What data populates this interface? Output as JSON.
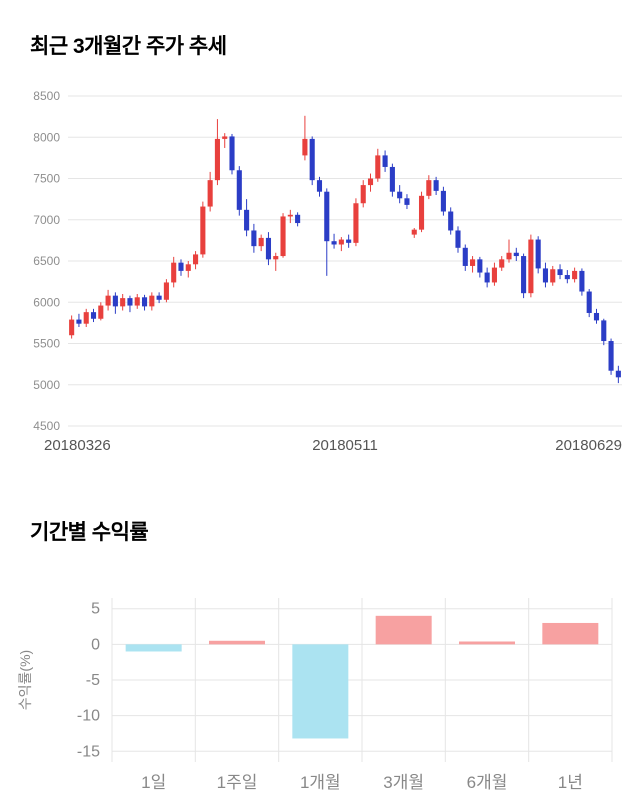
{
  "price_section": {
    "title": "최근 3개월간 주가 추세"
  },
  "returns_section": {
    "title": "기간별 수익률"
  },
  "chart_data": [
    {
      "type": "candlestick",
      "title": "최근 3개월간 주가 추세",
      "x_tick_labels": [
        "20180326",
        "20180511",
        "20180629"
      ],
      "y_ticks": [
        8500,
        8000,
        7500,
        7000,
        6500,
        6000,
        5500,
        5000,
        4500
      ],
      "ylim": [
        4500,
        8500
      ],
      "up_color": "#e8403d",
      "down_color": "#2b3dc6",
      "grid_color": "#e5e5e5",
      "tick_label_color": "#8e8e8e",
      "date_label_color": "#555555",
      "legend": "none",
      "grid": true,
      "candles_ohlc": [
        [
          5600,
          5840,
          5560,
          5790
        ],
        [
          5790,
          5860,
          5700,
          5740
        ],
        [
          5740,
          5920,
          5700,
          5880
        ],
        [
          5880,
          5920,
          5760,
          5800
        ],
        [
          5800,
          6000,
          5780,
          5960
        ],
        [
          5960,
          6150,
          5900,
          6080
        ],
        [
          6080,
          6120,
          5860,
          5950
        ],
        [
          5950,
          6100,
          5900,
          6050
        ],
        [
          6050,
          6080,
          5880,
          5960
        ],
        [
          5960,
          6100,
          5920,
          6060
        ],
        [
          6060,
          6090,
          5900,
          5950
        ],
        [
          5950,
          6120,
          5900,
          6080
        ],
        [
          6080,
          6120,
          5990,
          6030
        ],
        [
          6030,
          6280,
          6000,
          6240
        ],
        [
          6240,
          6550,
          6180,
          6480
        ],
        [
          6480,
          6520,
          6320,
          6380
        ],
        [
          6380,
          6500,
          6300,
          6460
        ],
        [
          6460,
          6620,
          6400,
          6580
        ],
        [
          6580,
          7220,
          6540,
          7160
        ],
        [
          7160,
          7580,
          7100,
          7480
        ],
        [
          7480,
          8220,
          7420,
          7980
        ],
        [
          7980,
          8050,
          7870,
          8010
        ],
        [
          8010,
          8040,
          7550,
          7600
        ],
        [
          7600,
          7650,
          7050,
          7120
        ],
        [
          7120,
          7250,
          6800,
          6870
        ],
        [
          6870,
          6950,
          6600,
          6680
        ],
        [
          6680,
          6820,
          6620,
          6780
        ],
        [
          6780,
          6850,
          6450,
          6520
        ],
        [
          6520,
          6600,
          6380,
          6560
        ],
        [
          6560,
          7080,
          6540,
          7040
        ],
        [
          7040,
          7120,
          6960,
          7060
        ],
        [
          7060,
          7090,
          6920,
          6960
        ],
        [
          7780,
          8260,
          7720,
          7980
        ],
        [
          7980,
          8010,
          7420,
          7480
        ],
        [
          7480,
          7520,
          7280,
          7340
        ],
        [
          7340,
          7380,
          6320,
          6740
        ],
        [
          6740,
          6830,
          6650,
          6700
        ],
        [
          6700,
          6790,
          6620,
          6760
        ],
        [
          6760,
          6820,
          6660,
          6720
        ],
        [
          6720,
          7260,
          6680,
          7200
        ],
        [
          7200,
          7480,
          7150,
          7420
        ],
        [
          7420,
          7560,
          7340,
          7500
        ],
        [
          7500,
          7860,
          7460,
          7780
        ],
        [
          7780,
          7840,
          7580,
          7640
        ],
        [
          7640,
          7680,
          7280,
          7340
        ],
        [
          7340,
          7420,
          7200,
          7260
        ],
        [
          7260,
          7310,
          7130,
          7180
        ],
        [
          6820,
          6900,
          6780,
          6880
        ],
        [
          6880,
          7340,
          6850,
          7290
        ],
        [
          7290,
          7540,
          7250,
          7480
        ],
        [
          7480,
          7520,
          7300,
          7350
        ],
        [
          7350,
          7400,
          7050,
          7100
        ],
        [
          7100,
          7150,
          6820,
          6870
        ],
        [
          6870,
          6920,
          6600,
          6660
        ],
        [
          6660,
          6700,
          6380,
          6440
        ],
        [
          6440,
          6560,
          6360,
          6520
        ],
        [
          6520,
          6550,
          6300,
          6360
        ],
        [
          6360,
          6420,
          6180,
          6240
        ],
        [
          6240,
          6480,
          6200,
          6420
        ],
        [
          6420,
          6560,
          6380,
          6520
        ],
        [
          6520,
          6760,
          6480,
          6600
        ],
        [
          6600,
          6660,
          6500,
          6560
        ],
        [
          6560,
          6590,
          6050,
          6110
        ],
        [
          6110,
          6820,
          6060,
          6760
        ],
        [
          6760,
          6800,
          6350,
          6410
        ],
        [
          6410,
          6480,
          6180,
          6240
        ],
        [
          6240,
          6440,
          6200,
          6400
        ],
        [
          6400,
          6460,
          6280,
          6330
        ],
        [
          6330,
          6390,
          6230,
          6280
        ],
        [
          6280,
          6420,
          6240,
          6380
        ],
        [
          6380,
          6410,
          6080,
          6130
        ],
        [
          6130,
          6160,
          5820,
          5870
        ],
        [
          5870,
          5920,
          5740,
          5780
        ],
        [
          5780,
          5800,
          5480,
          5530
        ],
        [
          5530,
          5560,
          5120,
          5170
        ],
        [
          5170,
          5230,
          5020,
          5090
        ]
      ]
    },
    {
      "type": "bar",
      "title": "기간별 수익률",
      "categories": [
        "1일",
        "1주일",
        "1개월",
        "3개월",
        "6개월",
        "1년"
      ],
      "values": [
        -1.0,
        0.5,
        -13.2,
        4.0,
        0.4,
        3.0
      ],
      "ylabel": "수익률(%)",
      "y_ticks": [
        5,
        0,
        -5,
        -10,
        -15
      ],
      "ylim": [
        -16.5,
        6.5
      ],
      "positive_color": "#f7a1a1",
      "negative_color": "#abe3f1",
      "grid_color": "#e5e5e5",
      "tick_label_color": "#888888",
      "category_label_color": "#888888",
      "legend": "none",
      "grid": true
    }
  ]
}
